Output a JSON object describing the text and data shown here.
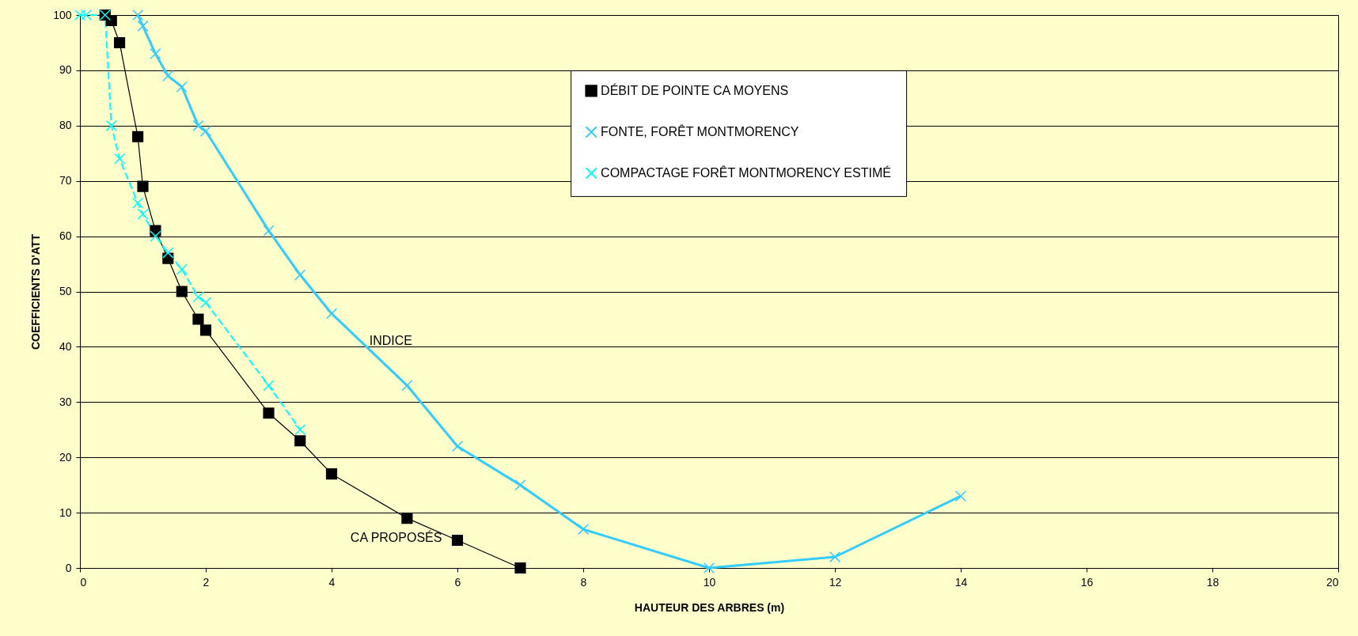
{
  "chart_data": {
    "type": "line",
    "xlabel": "HAUTEUR DES ARBRES (m)",
    "ylabel": "COEFFICIENTS D'ATT",
    "xlim": [
      0,
      20
    ],
    "xticks": [
      0,
      2,
      4,
      6,
      8,
      10,
      12,
      14,
      16,
      18,
      20
    ],
    "ylim": [
      0,
      100
    ],
    "yticks": [
      0,
      10,
      20,
      30,
      40,
      50,
      60,
      70,
      80,
      90,
      100
    ],
    "grid": "y",
    "legend": "top right",
    "series": [
      {
        "name": "DÉBIT DE POINTE CA MOYENS",
        "color": "#000000",
        "marker": "square",
        "line_style": "solid",
        "x": [
          0.4,
          0.5,
          0.63,
          0.92,
          1,
          1.2,
          1.4,
          1.62,
          1.88,
          2,
          3,
          3.5,
          4,
          5.2,
          6,
          7
        ],
        "values": [
          100,
          99,
          95,
          78,
          69,
          61,
          56,
          50,
          45,
          43,
          28,
          23,
          17,
          9,
          5,
          0
        ]
      },
      {
        "name": "FONTE, FORÊT MONTMORENCY",
        "color": "#33ccff",
        "marker": "cross",
        "line_style": "solid",
        "x": [
          0.92,
          1,
          1.2,
          1.4,
          1.62,
          1.88,
          2,
          3,
          3.5,
          4,
          5.2,
          6,
          7,
          8,
          10,
          12,
          14
        ],
        "values": [
          100,
          98,
          93,
          89,
          87,
          80,
          79,
          61,
          53,
          46,
          33,
          22,
          15,
          7,
          0,
          2,
          13
        ]
      },
      {
        "name": "COMPACTAGE FORÊT MONTMORENCY ESTIMÉ",
        "color": "#00ffff",
        "marker": "cross",
        "line_style": "dashed",
        "x": [
          0,
          0.1,
          0.4,
          0.5,
          0.63,
          0.92,
          1,
          1.2,
          1.4,
          1.62,
          1.88,
          2,
          3,
          3.5
        ],
        "values": [
          100,
          100,
          100,
          80,
          74,
          66,
          64,
          60,
          57,
          54,
          49,
          48,
          33,
          25
        ]
      }
    ],
    "annotations": [
      "INDICE",
      "CA PROPOSÉS"
    ]
  }
}
